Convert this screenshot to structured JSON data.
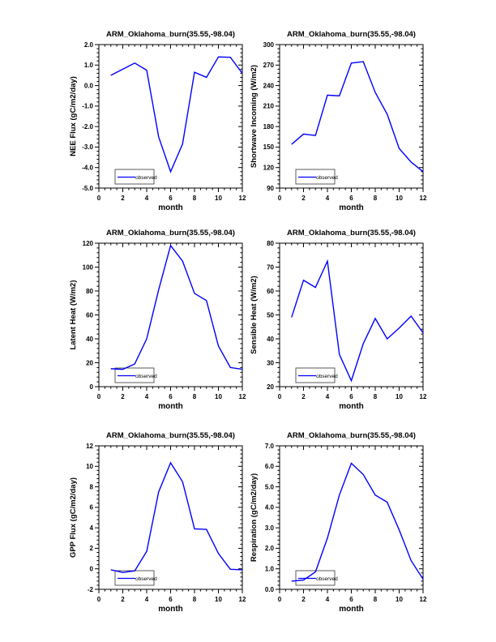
{
  "page": {
    "background_color": "#ffffff",
    "axis_color": "#000000",
    "series_color": "#0000ff"
  },
  "chart_data": [
    {
      "id": "nee-flux",
      "type": "line",
      "title": "ARM_Oklahoma_burn(35.55,-98.04)",
      "xlabel": "month",
      "ylabel": "NEE Flux (gC/m2/day)",
      "legend": {
        "label": "observed",
        "position": "lower-left"
      },
      "line_color": "#0000ff",
      "grid": false,
      "x": [
        1,
        2,
        3,
        4,
        5,
        6,
        7,
        8,
        9,
        10,
        11,
        12
      ],
      "values": [
        0.5,
        0.8,
        1.1,
        0.75,
        -2.5,
        -4.2,
        -2.85,
        0.65,
        0.4,
        1.4,
        1.38,
        0.6
      ],
      "xlim": [
        0,
        12
      ],
      "xticks": [
        0,
        2,
        4,
        6,
        8,
        10,
        12
      ],
      "xtick_labels": [
        "0",
        "2",
        "4",
        "6",
        "8",
        "10",
        "12"
      ],
      "ylim": [
        -5.0,
        2.0
      ],
      "yticks": [
        -5,
        -4,
        -3,
        -2,
        -1,
        0,
        1,
        2
      ],
      "ytick_labels": [
        "-5.0",
        "-4.0",
        "-3.0",
        "-2.0",
        "-1.0",
        "0.0",
        "1.0",
        "2.0"
      ]
    },
    {
      "id": "shortwave-incoming",
      "type": "line",
      "title": "ARM_Oklahoma_burn(35.55,-98.04)",
      "xlabel": "month",
      "ylabel": "Shortwave Incoming (W/m2)",
      "legend": {
        "label": "observed",
        "position": "lower-left"
      },
      "line_color": "#0000ff",
      "grid": false,
      "x": [
        1,
        2,
        3,
        4,
        5,
        6,
        7,
        8,
        9,
        10,
        11,
        12
      ],
      "values": [
        154,
        169,
        167,
        226,
        225,
        273,
        275,
        230,
        198,
        148,
        128,
        114
      ],
      "xlim": [
        0,
        12
      ],
      "xticks": [
        0,
        2,
        4,
        6,
        8,
        10,
        12
      ],
      "xtick_labels": [
        "0",
        "2",
        "4",
        "6",
        "8",
        "10",
        "12"
      ],
      "ylim": [
        90,
        300
      ],
      "yticks": [
        90,
        120,
        150,
        180,
        210,
        240,
        270,
        300
      ],
      "ytick_labels": [
        "90",
        "120",
        "150",
        "180",
        "210",
        "240",
        "270",
        "300"
      ]
    },
    {
      "id": "latent-heat",
      "type": "line",
      "title": "ARM_Oklahoma_burn(35.55,-98.04)",
      "xlabel": "month",
      "ylabel": "Latent Heat (W/m2)",
      "legend": {
        "label": "observed",
        "position": "lower-left"
      },
      "line_color": "#0000ff",
      "grid": false,
      "x": [
        1,
        2,
        3,
        4,
        5,
        6,
        7,
        8,
        9,
        10,
        11,
        12
      ],
      "values": [
        15,
        14.5,
        19,
        40,
        81,
        118,
        105,
        78,
        72,
        34,
        16,
        14.5
      ],
      "xlim": [
        0,
        12
      ],
      "xticks": [
        0,
        2,
        4,
        6,
        8,
        10,
        12
      ],
      "xtick_labels": [
        "0",
        "2",
        "4",
        "6",
        "8",
        "10",
        "12"
      ],
      "ylim": [
        0,
        120
      ],
      "yticks": [
        0,
        20,
        40,
        60,
        80,
        100,
        120
      ],
      "ytick_labels": [
        "0",
        "20",
        "40",
        "60",
        "80",
        "100",
        "120"
      ]
    },
    {
      "id": "sensible-heat",
      "type": "line",
      "title": "ARM_Oklahoma_burn(35.55,-98.04)",
      "xlabel": "month",
      "ylabel": "Sensible Heat (W/m2)",
      "legend": {
        "label": "observed",
        "position": "lower-left"
      },
      "line_color": "#0000ff",
      "grid": false,
      "x": [
        1,
        2,
        3,
        4,
        5,
        6,
        7,
        8,
        9,
        10,
        11,
        12
      ],
      "values": [
        49,
        64.5,
        61.5,
        72.5,
        33.5,
        22.5,
        38,
        48.5,
        40,
        44.5,
        49.5,
        42.5
      ],
      "xlim": [
        0,
        12
      ],
      "xticks": [
        0,
        2,
        4,
        6,
        8,
        10,
        12
      ],
      "xtick_labels": [
        "0",
        "2",
        "4",
        "6",
        "8",
        "10",
        "12"
      ],
      "ylim": [
        20,
        80
      ],
      "yticks": [
        20,
        30,
        40,
        50,
        60,
        70,
        80
      ],
      "ytick_labels": [
        "20",
        "30",
        "40",
        "50",
        "60",
        "70",
        "80"
      ]
    },
    {
      "id": "gpp-flux",
      "type": "line",
      "title": "ARM_Oklahoma_burn(35.55,-98.04)",
      "xlabel": "month",
      "ylabel": "GPP Flux (gC/m2/day)",
      "legend": {
        "label": "observed",
        "position": "lower-left"
      },
      "line_color": "#0000ff",
      "grid": false,
      "x": [
        1,
        2,
        3,
        4,
        5,
        6,
        7,
        8,
        9,
        10,
        11,
        12
      ],
      "values": [
        -0.1,
        -0.35,
        -0.2,
        1.7,
        7.5,
        10.35,
        8.5,
        3.9,
        3.85,
        1.5,
        -0.05,
        -0.1
      ],
      "xlim": [
        0,
        12
      ],
      "xticks": [
        0,
        2,
        4,
        6,
        8,
        10,
        12
      ],
      "xtick_labels": [
        "0",
        "2",
        "4",
        "6",
        "8",
        "10",
        "12"
      ],
      "ylim": [
        -2,
        12
      ],
      "yticks": [
        -2,
        0,
        2,
        4,
        6,
        8,
        10,
        12
      ],
      "ytick_labels": [
        "-2",
        "0",
        "2",
        "4",
        "6",
        "8",
        "10",
        "12"
      ]
    },
    {
      "id": "respiration",
      "type": "line",
      "title": "ARM_Oklahoma_burn(35.55,-98.04)",
      "xlabel": "month",
      "ylabel": "Respiration (gC/m2/day)",
      "legend": {
        "label": "observed",
        "position": "lower-left"
      },
      "line_color": "#0000ff",
      "grid": false,
      "x": [
        1,
        2,
        3,
        4,
        5,
        6,
        7,
        8,
        9,
        10,
        11,
        12
      ],
      "values": [
        0.4,
        0.45,
        0.85,
        2.5,
        4.6,
        6.15,
        5.6,
        4.6,
        4.25,
        2.9,
        1.4,
        0.5
      ],
      "xlim": [
        0,
        12
      ],
      "xticks": [
        0,
        2,
        4,
        6,
        8,
        10,
        12
      ],
      "xtick_labels": [
        "0",
        "2",
        "4",
        "6",
        "8",
        "10",
        "12"
      ],
      "ylim": [
        0.0,
        7.0
      ],
      "yticks": [
        0,
        1,
        2,
        3,
        4,
        5,
        6,
        7
      ],
      "ytick_labels": [
        "0.0",
        "1.0",
        "2.0",
        "3.0",
        "4.0",
        "5.0",
        "6.0",
        "7.0"
      ]
    }
  ]
}
